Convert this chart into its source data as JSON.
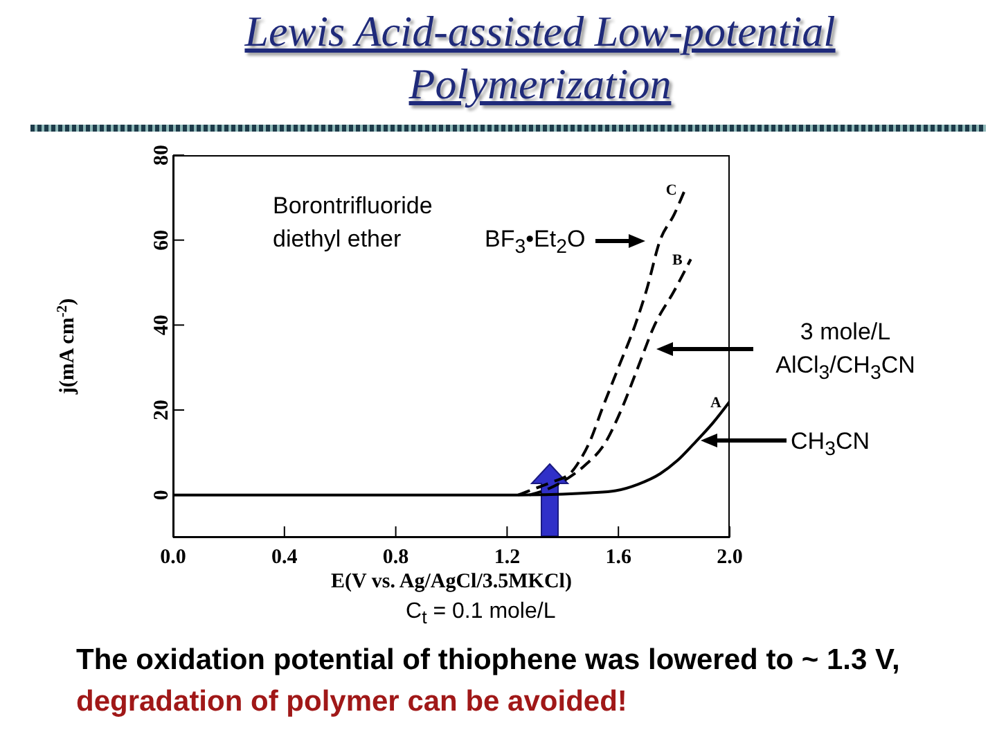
{
  "chart_data": {
    "type": "line",
    "title": "Lewis Acid-assisted Low-potential Polymerization",
    "xlabel": "E(V vs. Ag/AgCl/3.5MKCl)",
    "ylabel": "j(mA cm$^{-2}$)",
    "xlim": [
      0,
      2.0
    ],
    "xticks": [
      {
        "value": 0,
        "label": "0.0"
      },
      {
        "value": 0.4,
        "label": "0.4"
      },
      {
        "value": 0.8,
        "label": "0.8"
      },
      {
        "value": 1.2,
        "label": "1.2"
      },
      {
        "value": 1.6,
        "label": "1.6"
      },
      {
        "value": 2.0,
        "label": "2.0"
      }
    ],
    "ylim": [
      -10,
      80
    ],
    "yticks": [
      0,
      20,
      40,
      60,
      80
    ],
    "marker": "none",
    "series": [
      {
        "name": "C",
        "color": "#000000",
        "line_style": "dashed",
        "x": [
          1.24,
          1.3,
          1.36,
          1.43,
          1.46,
          1.5,
          1.54,
          1.6,
          1.66,
          1.7,
          1.75,
          1.8,
          1.84
        ],
        "values": [
          0,
          1.5,
          3,
          5.3,
          8,
          13,
          20,
          30,
          40,
          48,
          60,
          66,
          72
        ]
      },
      {
        "name": "B",
        "color": "#000000",
        "line_style": "dashed",
        "x": [
          1.28,
          1.35,
          1.42,
          1.48,
          1.55,
          1.61,
          1.67,
          1.73,
          1.8,
          1.86
        ],
        "values": [
          0,
          1.5,
          4,
          7,
          12,
          20,
          30,
          40,
          48,
          55.5
        ]
      },
      {
        "name": "A",
        "color": "#000000",
        "line_style": "solid",
        "x": [
          0,
          1.2,
          1.4,
          1.5,
          1.59,
          1.67,
          1.75,
          1.81,
          1.87,
          1.94,
          2.0
        ],
        "values": [
          0,
          0,
          0.2,
          0.5,
          1,
          2.5,
          5,
          8,
          12,
          17,
          22
        ]
      }
    ],
    "annotations": [
      "Borontrifluoride diethyl ether",
      "BF$_{3}$•Et$_{2}$O",
      "3 mole/L AlCl$_{3}$/CH$_{3}$CN",
      "CH$_{3}$CN",
      "C$_{t}$ = 0.1 mole/L",
      "The oxidation potential of thiophene was lowered to ~ 1.3 V,",
      "degradation of polymer can be avoided!"
    ]
  }
}
